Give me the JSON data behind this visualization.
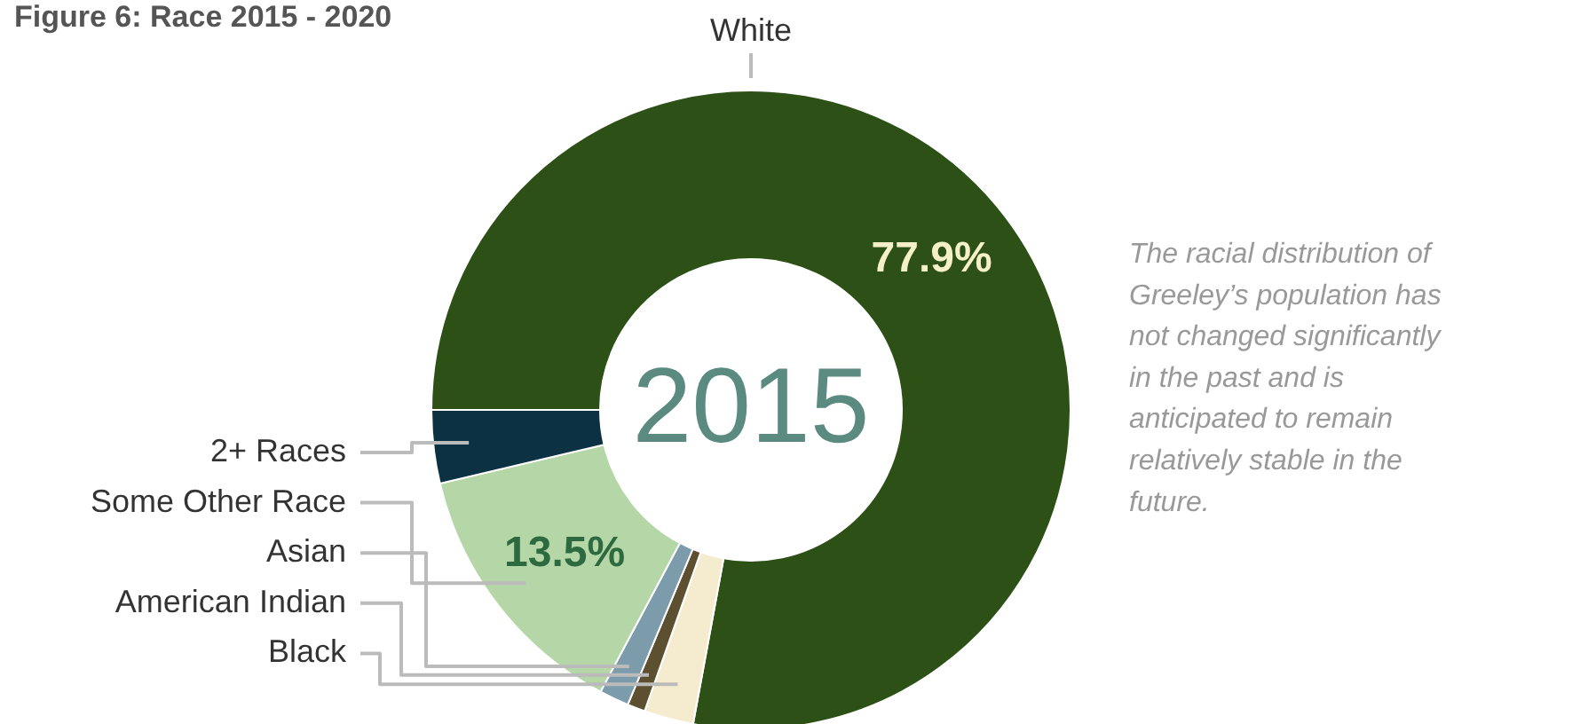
{
  "chart_data": {
    "type": "donut",
    "title": "Figure 6: Race 2015 - 2020",
    "categories": [
      "White",
      "Black",
      "American Indian",
      "Asian",
      "Some Other Race",
      "2+ Races"
    ],
    "values": [
      77.9,
      2.5,
      0.9,
      1.5,
      13.5,
      3.7
    ],
    "colors": [
      "#2d5016",
      "#f5ecd0",
      "#5c5030",
      "#7c9cab",
      "#b5d6a7",
      "#0b3142"
    ],
    "value_labels": [
      "77.9%",
      null,
      null,
      null,
      "13.5%",
      null
    ],
    "annotations": [
      "2015",
      "The racial distribution of Greeley’s population has not changed significantly in the past and is anticipated to remain relatively stable in the future."
    ]
  }
}
